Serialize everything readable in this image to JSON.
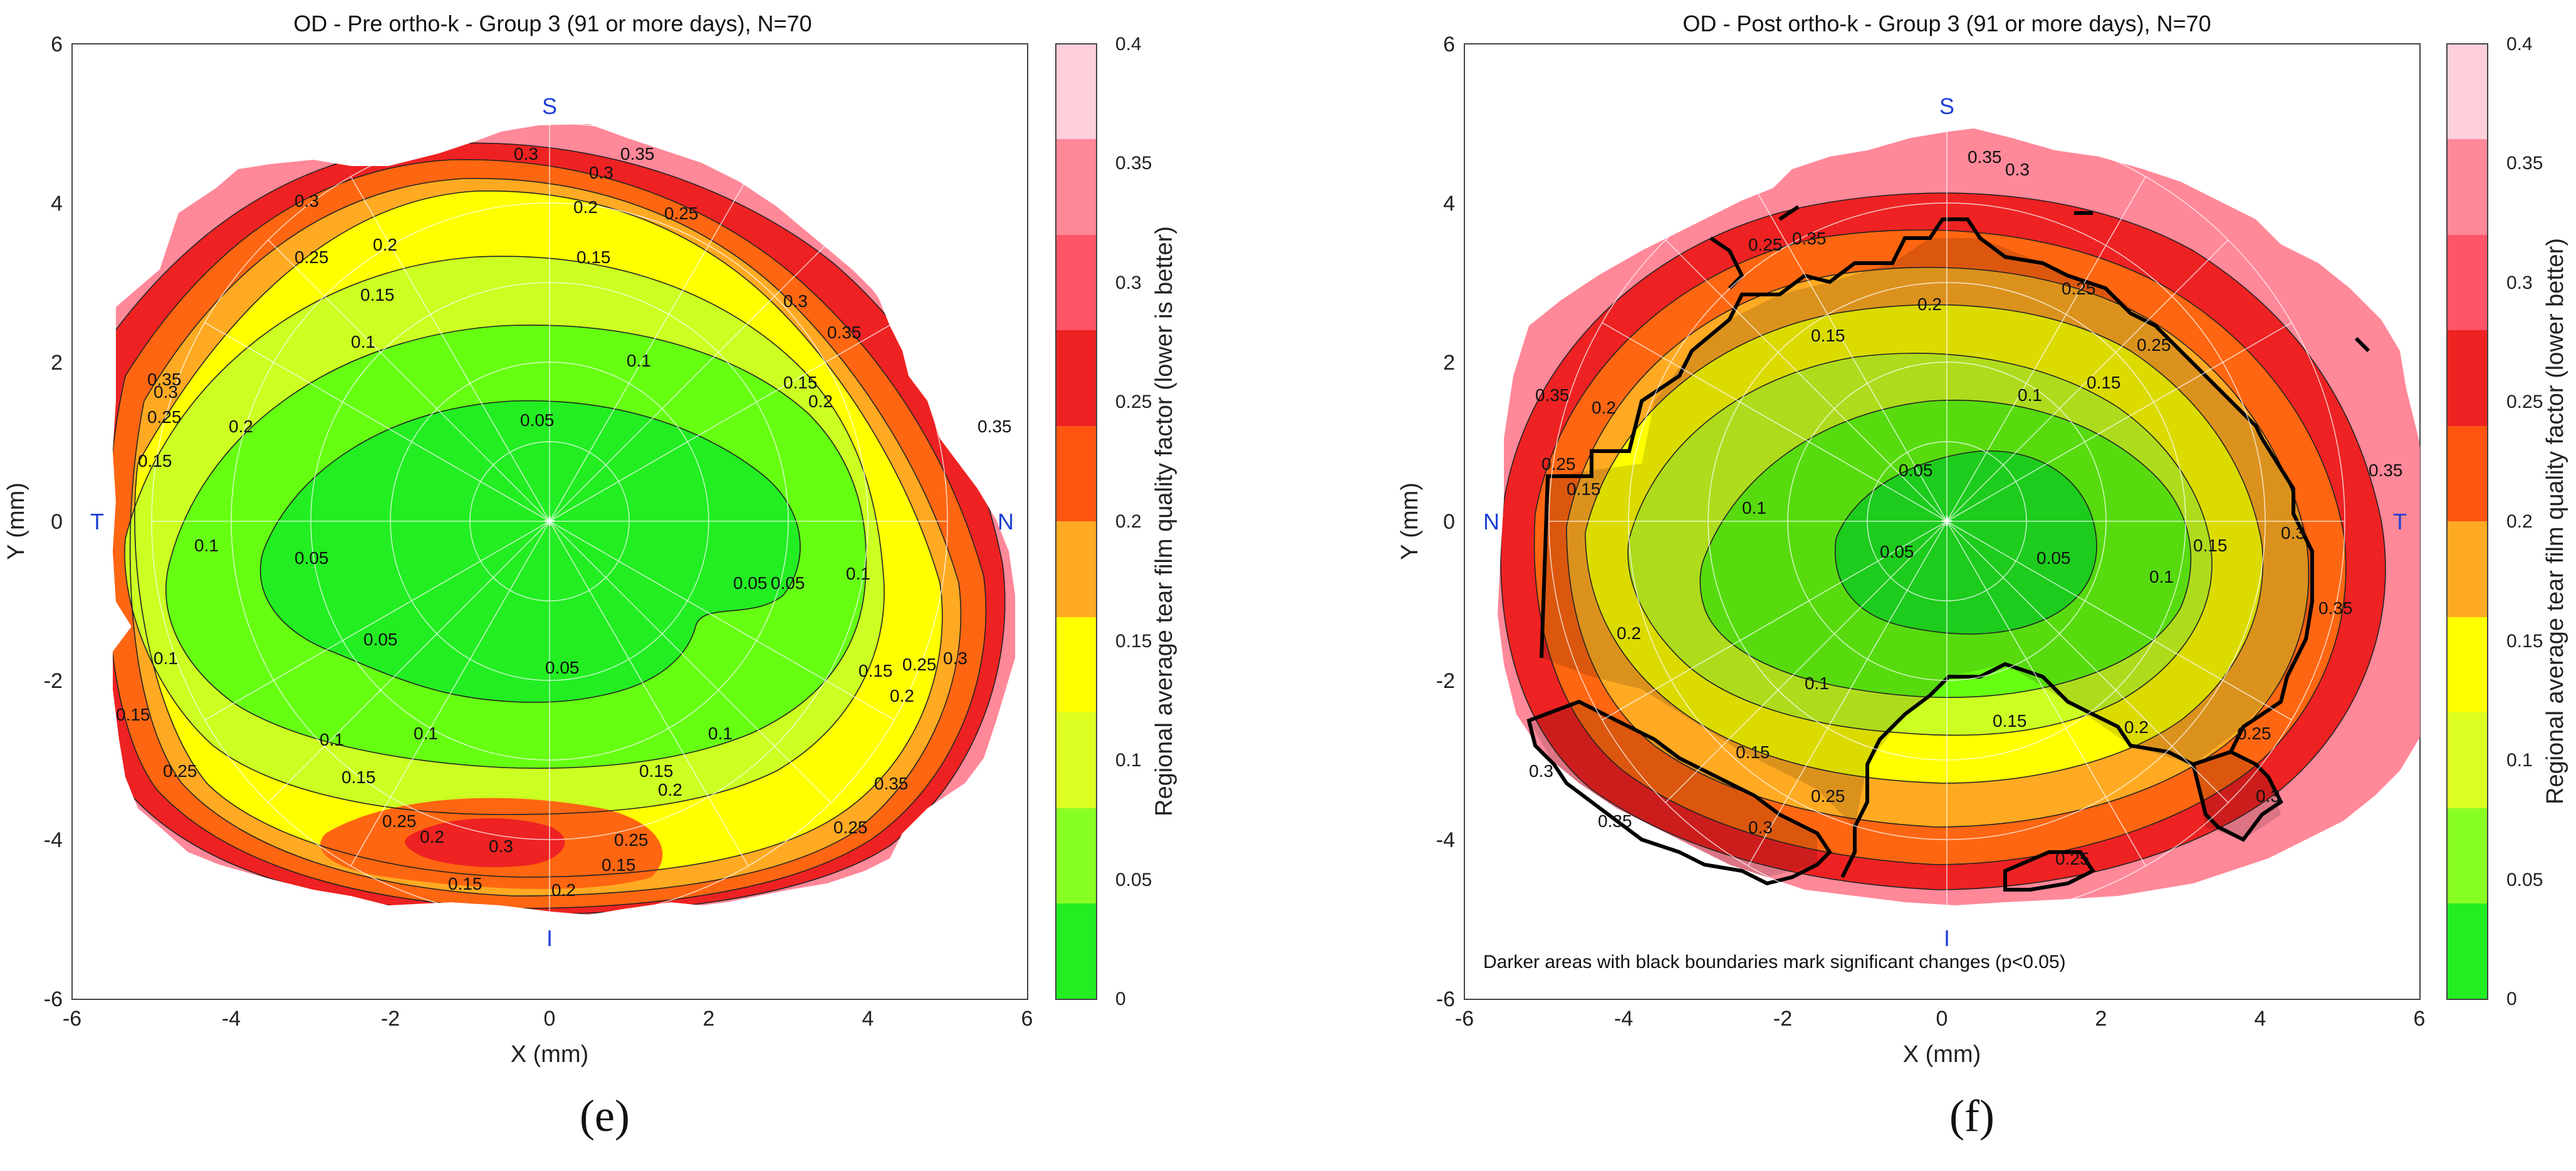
{
  "chart_data": [
    {
      "type": "heatmap",
      "subtype": "filled-contour-polar-map",
      "title": "OD - Pre ortho-k - Group 3 (91 or more days), N=70",
      "xlabel": "X (mm)",
      "ylabel": "Y (mm)",
      "xlim": [
        -6,
        6
      ],
      "ylim": [
        -6,
        6
      ],
      "xticks": [
        "-6",
        "-4",
        "-2",
        "0",
        "2",
        "4",
        "6"
      ],
      "yticks": [
        "6",
        "4",
        "2",
        "0",
        "-2",
        "-4",
        "-6"
      ],
      "directions": {
        "top": "S",
        "bottom": "I",
        "left": "T",
        "right": "N"
      },
      "colorbar": {
        "label": "Regional average tear film quality factor (lower is better)",
        "ticks": [
          "0.4",
          "0.35",
          "0.3",
          "0.25",
          "0.2",
          "0.15",
          "0.1",
          "0.05",
          "0"
        ],
        "range": [
          0,
          0.4
        ]
      },
      "contour_levels": [
        "0.05",
        "0.1",
        "0.15",
        "0.2",
        "0.25",
        "0.3",
        "0.35"
      ],
      "panel_label": "(e)"
    },
    {
      "type": "heatmap",
      "subtype": "filled-contour-polar-map",
      "title": "OD - Post ortho-k - Group 3 (91 or more days), N=70",
      "xlabel": "X (mm)",
      "ylabel": "Y (mm)",
      "xlim": [
        -6,
        6
      ],
      "ylim": [
        -6,
        6
      ],
      "xticks": [
        "-6",
        "-4",
        "-2",
        "0",
        "2",
        "4",
        "6"
      ],
      "yticks": [
        "6",
        "4",
        "2",
        "0",
        "-2",
        "-4",
        "-6"
      ],
      "directions": {
        "top": "S",
        "bottom": "I",
        "left": "N",
        "right": "T"
      },
      "colorbar": {
        "label": "Regional average tear film quality factor (lower better)",
        "ticks": [
          "0.4",
          "0.35",
          "0.3",
          "0.25",
          "0.2",
          "0.15",
          "0.1",
          "0.05",
          "0"
        ],
        "range": [
          0,
          0.4
        ]
      },
      "contour_levels": [
        "0.05",
        "0.1",
        "0.15",
        "0.2",
        "0.25",
        "0.3",
        "0.35"
      ],
      "annotation": "Darker areas with black boundaries mark significant changes (p<0.05)",
      "panel_label": "(f)"
    }
  ],
  "colors": {
    "band_0_005": "#22ee22",
    "band_005_01": "#66ff11",
    "band_01_015": "#ccff22",
    "band_015_02": "#ffff00",
    "band_02_025": "#ffaa22",
    "band_025_03": "#ff6611",
    "band_03_035": "#ee2222",
    "band_035_04": "#ff8899",
    "direction_text": "#1f3fd6"
  }
}
